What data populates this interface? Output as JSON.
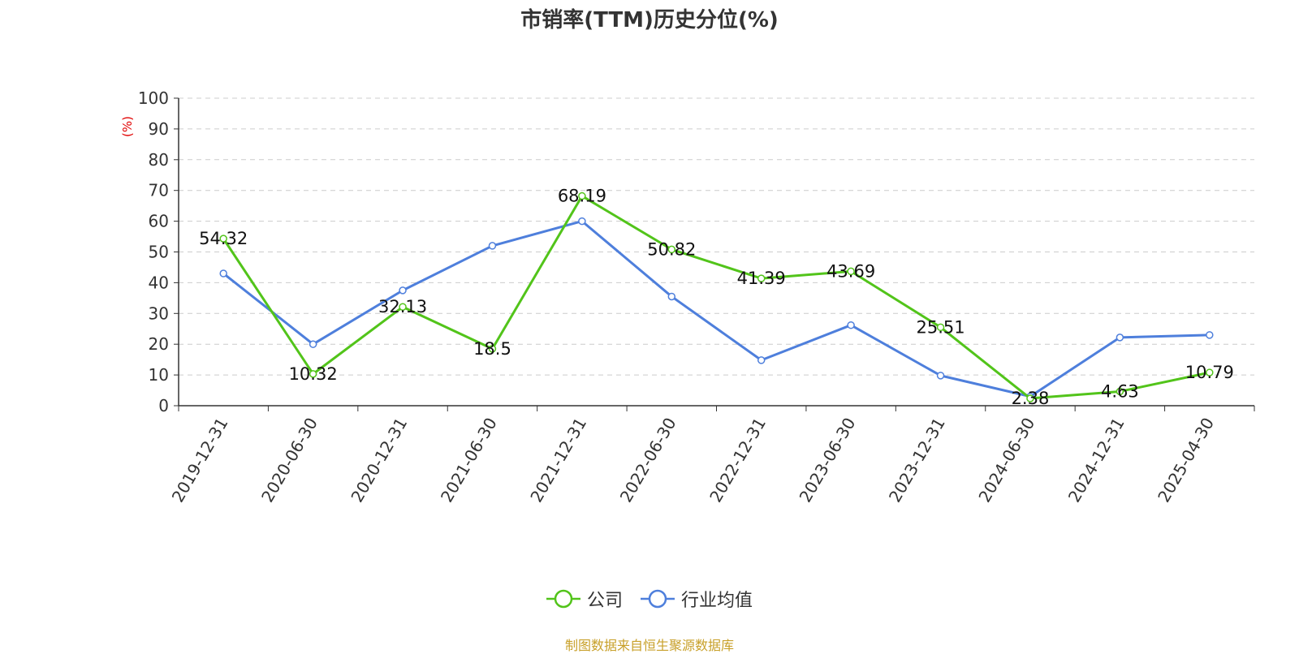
{
  "chart_data": {
    "type": "line",
    "title": "市销率(TTM)历史分位(%)",
    "ylabel": "(%)",
    "xlabel": "",
    "ylim": [
      0,
      100
    ],
    "yticks": [
      0,
      10,
      20,
      30,
      40,
      50,
      60,
      70,
      80,
      90,
      100
    ],
    "categories": [
      "2019-12-31",
      "2020-06-30",
      "2020-12-31",
      "2021-06-30",
      "2021-12-31",
      "2022-06-30",
      "2022-12-31",
      "2023-06-30",
      "2023-12-31",
      "2024-06-30",
      "2024-12-31",
      "2025-04-30"
    ],
    "series": [
      {
        "name": "公司",
        "color": "#52c41a",
        "values": [
          54.32,
          10.32,
          32.13,
          18.5,
          68.19,
          50.82,
          41.39,
          43.69,
          25.51,
          2.38,
          4.63,
          10.79
        ],
        "show_labels": true
      },
      {
        "name": "行业均值",
        "color": "#4e7fdc",
        "values": [
          43.0,
          20.0,
          37.5,
          52.0,
          60.0,
          35.5,
          14.8,
          26.2,
          9.8,
          3.0,
          22.2,
          23.0
        ],
        "show_labels": false
      }
    ],
    "grid": true,
    "legend_position": "bottom-center"
  },
  "source_note": "制图数据来自恒生聚源数据库"
}
